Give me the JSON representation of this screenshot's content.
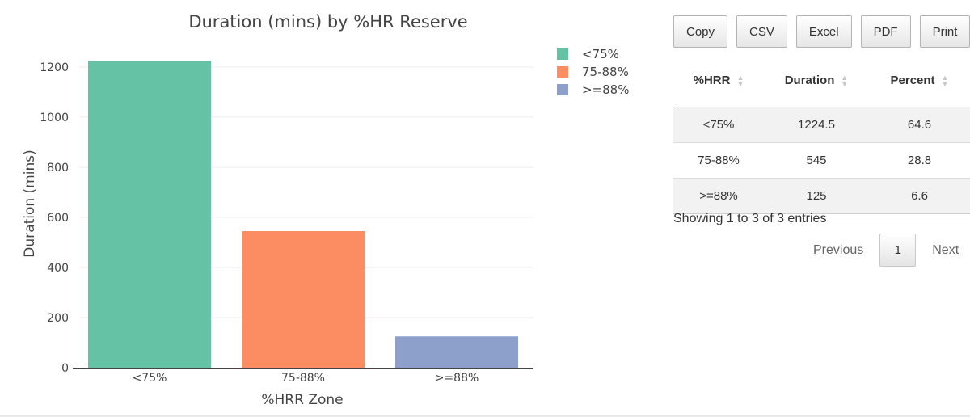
{
  "chart_data": {
    "type": "bar",
    "title": "Duration (mins) by %HR Reserve",
    "xlabel": "%HRR Zone",
    "ylabel": "Duration (mins)",
    "categories": [
      "<75%",
      "75-88%",
      ">=88%"
    ],
    "values": [
      1224.5,
      545,
      125
    ],
    "colors": [
      "#66c2a5",
      "#fc8d62",
      "#8da0cb"
    ],
    "ylim": [
      0,
      1290
    ],
    "yticks": [
      0,
      200,
      400,
      600,
      800,
      1000,
      1200
    ],
    "grid": true,
    "legend": {
      "position": "top-right",
      "entries": [
        "<75%",
        "75-88%",
        ">=88%"
      ]
    }
  },
  "table": {
    "buttons": [
      "Copy",
      "CSV",
      "Excel",
      "PDF",
      "Print"
    ],
    "columns": [
      "%HRR",
      "Duration",
      "Percent"
    ],
    "rows": [
      [
        "<75%",
        "1224.5",
        "64.6"
      ],
      [
        "75-88%",
        "545",
        "28.8"
      ],
      [
        ">=88%",
        "125",
        "6.6"
      ]
    ],
    "info": "Showing 1 to 3 of 3 entries",
    "pagination": {
      "previous": "Previous",
      "current": "1",
      "next": "Next"
    }
  }
}
